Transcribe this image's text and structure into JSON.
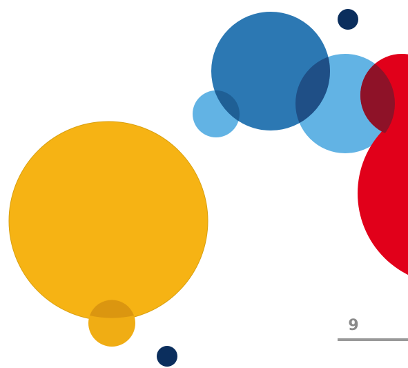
{
  "slide": {
    "page_number": "9"
  },
  "colors": {
    "background": "#ffffff",
    "yellow": "#f6b314",
    "yellow_dark": "#d89410",
    "dark_blue": "#2372b0",
    "light_blue": "#62b3e4",
    "red": "#e1001a",
    "navy": "#0b2e5d",
    "page_number": "#8a8a8a",
    "rule": "#999999"
  },
  "decoration": {
    "shapes": [
      "yellow-circle",
      "small-yellow-circle",
      "dark-blue-circle",
      "light-blue-circles",
      "red-circles",
      "navy-dots"
    ]
  }
}
